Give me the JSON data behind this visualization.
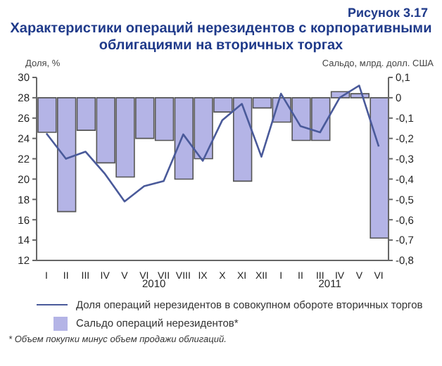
{
  "chart_data": {
    "type": "bar",
    "subtitle": "Рисунок 3.17",
    "title": "Характеристики операций нерезидентов с корпоративными облигациями на вторичных торгах",
    "ylabel": "Доля, %",
    "y2label": "Сальдо, млрд. долл. США",
    "categories": [
      "I",
      "II",
      "III",
      "IV",
      "V",
      "VI",
      "VII",
      "VIII",
      "IX",
      "X",
      "XI",
      "XII",
      "I",
      "II",
      "III",
      "IV",
      "V",
      "VI"
    ],
    "series": [
      {
        "name": "Доля операций нерезидентов в совокупном обороте вторичных торгов",
        "type": "line",
        "color": "#4a5a9a",
        "values": [
          24.5,
          22.0,
          22.7,
          20.5,
          17.8,
          19.3,
          19.8,
          24.4,
          21.8,
          25.8,
          27.4,
          22.2,
          28.4,
          25.2,
          24.6,
          28.0,
          29.2,
          23.2
        ]
      },
      {
        "name": "Сальдо операций нерезидентов*",
        "axis": "y2",
        "color": "#b4b4e6",
        "values": [
          -0.17,
          -0.56,
          -0.16,
          -0.32,
          -0.39,
          -0.2,
          -0.21,
          -0.4,
          -0.3,
          -0.07,
          -0.41,
          -0.05,
          -0.12,
          -0.21,
          -0.21,
          0.03,
          0.02,
          -0.69
        ]
      }
    ],
    "ylim": [
      12,
      30
    ],
    "yticks": [
      12,
      14,
      16,
      18,
      20,
      22,
      24,
      26,
      28,
      30
    ],
    "y2lim": [
      -0.8,
      0.1
    ],
    "y2ticks": [
      {
        "value": -0.8,
        "label": "-0,8"
      },
      {
        "value": -0.7,
        "label": "-0,7"
      },
      {
        "value": -0.6,
        "label": "-0,6"
      },
      {
        "value": -0.5,
        "label": "-0,5"
      },
      {
        "value": -0.4,
        "label": "-0,4"
      },
      {
        "value": -0.3,
        "label": "-0,3"
      },
      {
        "value": -0.2,
        "label": "-0,2"
      },
      {
        "value": -0.1,
        "label": "-0,1"
      },
      0,
      {
        "value": 0.1,
        "label": "0,1"
      }
    ],
    "marker": "none",
    "legend": "bottom",
    "annotations": [
      "2010",
      "2011",
      "* Объем покупки минус объем продажи облигаций."
    ]
  }
}
